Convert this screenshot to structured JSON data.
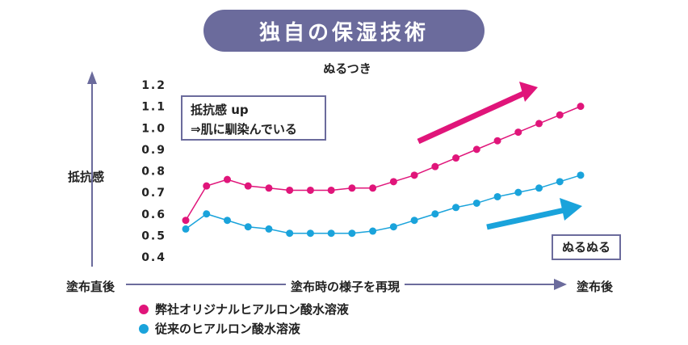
{
  "header": {
    "title": "独自の保湿技術",
    "subtitle": "ぬるつき"
  },
  "axis": {
    "ylabel": "抵抗感",
    "x_start": "塗布直後",
    "x_middle": "塗布時の様子を再現",
    "x_end": "塗布後"
  },
  "notes": {
    "box1_line1": "抵抗感 up",
    "box1_line2": "⇒肌に馴染んでいる",
    "box2": "ぬるぬる"
  },
  "legend": [
    {
      "label": "弊社オリジナルヒアルロン酸水溶液",
      "color": "#e0157a"
    },
    {
      "label": "従来のヒアルロン酸水溶液",
      "color": "#1aa3db"
    }
  ],
  "colors": {
    "pill": "#6b6b9c",
    "axis": "#6b6b9c",
    "series_pink": "#e0157a",
    "series_blue": "#1aa3db"
  },
  "chart_data": {
    "type": "line",
    "ylabel": "抵抗感",
    "ylim": [
      0.4,
      1.2
    ],
    "yticks": [
      "1.2",
      "1.1",
      "1.0",
      "0.9",
      "0.8",
      "0.7",
      "0.6",
      "0.5",
      "0.4"
    ],
    "x": [
      1,
      2,
      3,
      4,
      5,
      6,
      7,
      8,
      9,
      10,
      11,
      12,
      13,
      14,
      15,
      16,
      17,
      18,
      19,
      20
    ],
    "series": [
      {
        "name": "弊社オリジナルヒアルロン酸水溶液",
        "color": "#e0157a",
        "values": [
          0.57,
          0.73,
          0.76,
          0.73,
          0.72,
          0.71,
          0.71,
          0.71,
          0.72,
          0.72,
          0.75,
          0.78,
          0.82,
          0.86,
          0.9,
          0.94,
          0.98,
          1.02,
          1.06,
          1.1
        ]
      },
      {
        "name": "従来のヒアルロン酸水溶液",
        "color": "#1aa3db",
        "values": [
          0.53,
          0.6,
          0.57,
          0.54,
          0.53,
          0.51,
          0.51,
          0.51,
          0.51,
          0.52,
          0.54,
          0.57,
          0.6,
          0.63,
          0.65,
          0.68,
          0.7,
          0.72,
          0.75,
          0.78
        ]
      }
    ]
  }
}
